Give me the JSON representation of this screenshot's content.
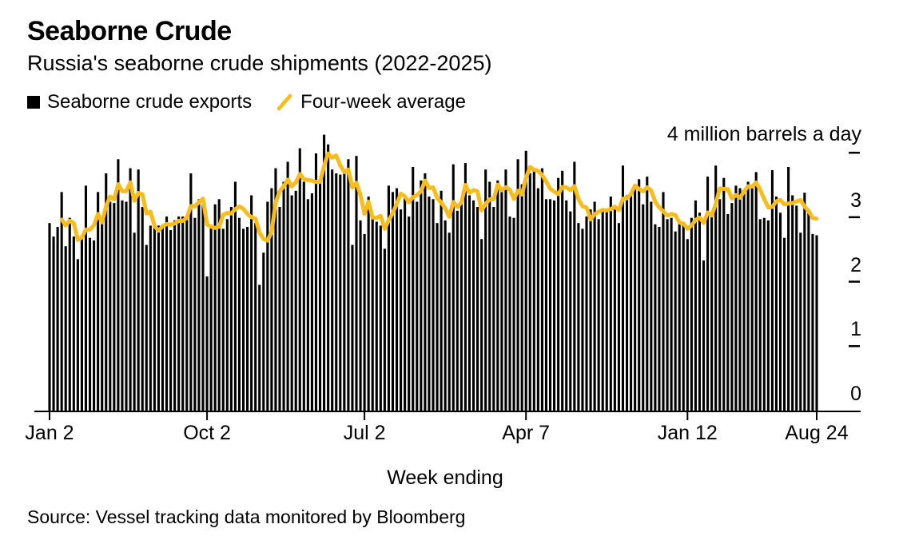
{
  "title": "Seaborne Crude",
  "subtitle": "Russia's seaborne crude shipments (2022-2025)",
  "source": "Source: Vessel tracking data monitored by Bloomberg",
  "colors": {
    "bar": "#000000",
    "line": "#F8BC1C",
    "axis": "#000000",
    "background": "#ffffff"
  },
  "legend": [
    {
      "label": "Seaborne crude exports",
      "swatch": "black-square"
    },
    {
      "label": "Four-week average",
      "swatch": "yellow-slash"
    }
  ],
  "chart_data": {
    "type": "bar",
    "title": "Seaborne Crude",
    "subtitle": "Russia's seaborne crude shipments (2022-2025)",
    "xlabel": "Week ending",
    "ylabel": "4 million barrels a day",
    "ylim": [
      0,
      4
    ],
    "grid": false,
    "legend_position": "top-left",
    "x_axis_note": "weekly data, Jan 2 2022 - Aug 24 2025",
    "x_ticks": [
      {
        "index": 0,
        "label": "Jan 2"
      },
      {
        "index": 39,
        "label": "Oct 2"
      },
      {
        "index": 78,
        "label": "Jul 2"
      },
      {
        "index": 118,
        "label": "Apr 7"
      },
      {
        "index": 158,
        "label": "Jan 12"
      },
      {
        "index": 190,
        "label": "Aug 24"
      }
    ],
    "y_ticks": [
      {
        "value": 0,
        "label": "0"
      },
      {
        "value": 1,
        "label": "1"
      },
      {
        "value": 2,
        "label": "2"
      },
      {
        "value": 3,
        "label": "3"
      },
      {
        "value": 4,
        "label": ""
      }
    ],
    "series": [
      {
        "name": "Seaborne crude exports",
        "type": "bar",
        "color": "#000000",
        "values": [
          2.91,
          2.7,
          2.85,
          3.39,
          2.55,
          2.99,
          2.7,
          2.35,
          2.7,
          3.49,
          2.68,
          2.64,
          3.39,
          2.97,
          3.68,
          3.24,
          3.22,
          3.9,
          3.26,
          3.24,
          3.76,
          2.76,
          3.74,
          3.16,
          2.57,
          2.87,
          2.85,
          2.87,
          2.85,
          3.01,
          2.8,
          2.95,
          3.01,
          3.01,
          2.99,
          3.68,
          2.99,
          3.28,
          3.2,
          2.08,
          2.85,
          3.2,
          3.28,
          2.82,
          2.97,
          3.16,
          3.55,
          2.99,
          2.82,
          2.85,
          3.34,
          2.91,
          1.95,
          2.45,
          3.24,
          3.45,
          3.76,
          3.16,
          3.55,
          3.86,
          3.34,
          3.41,
          4.07,
          3.55,
          3.28,
          3.37,
          3.99,
          3.55,
          4.28,
          4.13,
          3.74,
          3.68,
          3.66,
          3.72,
          3.9,
          2.57,
          3.95,
          2.95,
          2.74,
          3.32,
          2.97,
          2.93,
          2.87,
          2.51,
          3.49,
          3.39,
          3.45,
          3.12,
          3.34,
          3.01,
          3.78,
          3.24,
          3.57,
          3.68,
          3.32,
          3.28,
          2.91,
          3.41,
          2.95,
          2.76,
          3.82,
          3.1,
          3.24,
          3.84,
          3.34,
          3.26,
          3.16,
          2.66,
          3.74,
          3.55,
          3.16,
          3.57,
          3.39,
          3.74,
          3.01,
          2.99,
          3.9,
          3.51,
          4.03,
          3.68,
          3.72,
          3.45,
          3.76,
          3.28,
          3.28,
          3.26,
          3.61,
          3.72,
          3.26,
          3.09,
          3.86,
          2.91,
          2.82,
          3.01,
          3.12,
          3.24,
          2.97,
          3.12,
          3.09,
          3.32,
          3.12,
          2.91,
          3.8,
          3.34,
          3.39,
          3.43,
          3.59,
          3.2,
          3.63,
          3.24,
          2.89,
          2.85,
          3.39,
          2.97,
          2.99,
          2.78,
          2.93,
          2.91,
          2.66,
          2.99,
          3.26,
          3.07,
          2.33,
          3.63,
          3.07,
          3.8,
          3.28,
          3.61,
          3.05,
          3.22,
          3.49,
          3.45,
          3.43,
          3.55,
          3.47,
          3.7,
          2.97,
          2.99,
          2.95,
          3.73,
          3.32,
          3.07,
          2.68,
          3.78,
          3.34,
          3.18,
          2.76,
          3.38,
          3.07,
          2.74,
          2.72
        ]
      },
      {
        "name": "Four-week average",
        "type": "line",
        "color": "#F8BC1C",
        "derived": "trailing 4-week mean of 'Seaborne crude exports'"
      }
    ]
  }
}
